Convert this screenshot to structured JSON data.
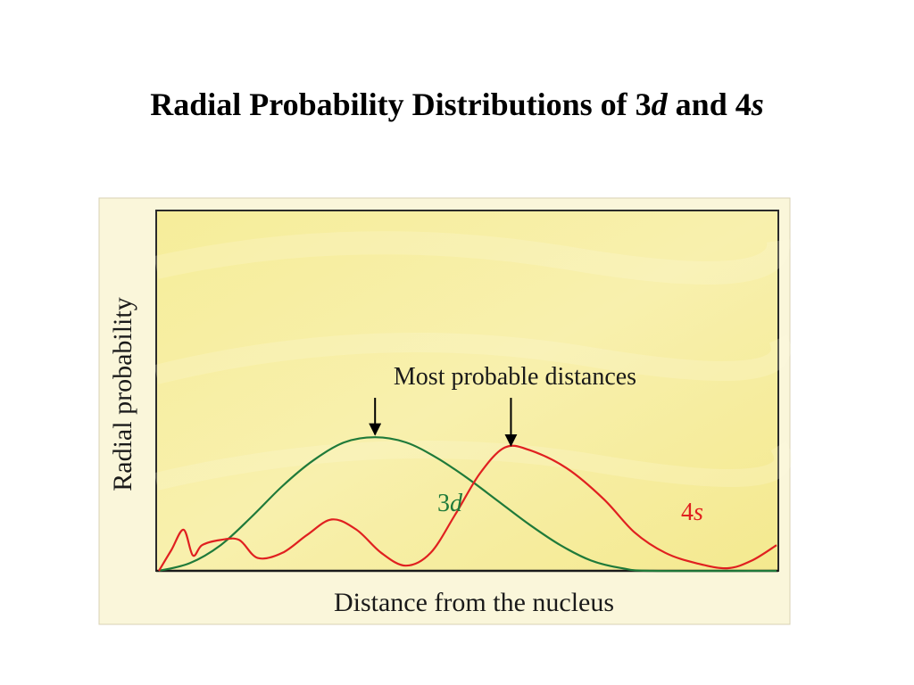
{
  "slide": {
    "title_main": "Radial Probability Distributions of 3",
    "title_d": "d",
    "title_and": " and 4",
    "title_s": "s"
  },
  "chart_data": {
    "type": "line",
    "xlabel": "Distance from the nucleus",
    "ylabel": "Radial probability",
    "xlim": [
      0,
      1
    ],
    "ylim": [
      0,
      1
    ],
    "grid": false,
    "annotation": "Most probable distances",
    "series": [
      {
        "name": "3d",
        "label_main": "3",
        "label_italic": "d",
        "color": "#1f7a3a",
        "x": [
          0.0,
          0.05,
          0.1,
          0.15,
          0.2,
          0.25,
          0.3,
          0.35,
          0.4,
          0.45,
          0.5,
          0.55,
          0.6,
          0.65,
          0.7,
          0.75,
          0.8,
          1.0
        ],
        "y": [
          0.0,
          0.03,
          0.1,
          0.21,
          0.33,
          0.43,
          0.5,
          0.52,
          0.5,
          0.44,
          0.36,
          0.27,
          0.18,
          0.1,
          0.04,
          0.01,
          0.0,
          0.0
        ]
      },
      {
        "name": "4s",
        "label_main": "4",
        "label_italic": "s",
        "color": "#e02020",
        "x": [
          0.0,
          0.02,
          0.04,
          0.055,
          0.07,
          0.1,
          0.13,
          0.16,
          0.2,
          0.24,
          0.28,
          0.32,
          0.36,
          0.4,
          0.44,
          0.48,
          0.52,
          0.56,
          0.6,
          0.66,
          0.72,
          0.77,
          0.82,
          0.87,
          0.92,
          0.96,
          1.0
        ],
        "y": [
          0.0,
          0.08,
          0.16,
          0.06,
          0.1,
          0.12,
          0.12,
          0.05,
          0.07,
          0.14,
          0.2,
          0.16,
          0.07,
          0.02,
          0.07,
          0.22,
          0.38,
          0.48,
          0.47,
          0.4,
          0.28,
          0.15,
          0.07,
          0.03,
          0.01,
          0.04,
          0.1
        ]
      }
    ],
    "peaks": [
      {
        "series": "3d",
        "x": 0.35
      },
      {
        "series": "4s",
        "x": 0.57
      }
    ]
  }
}
